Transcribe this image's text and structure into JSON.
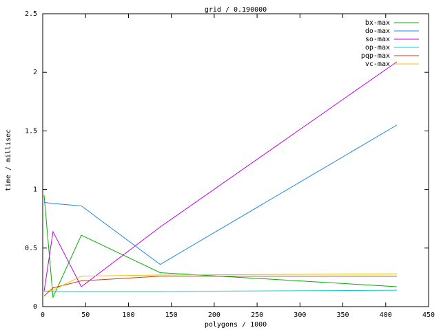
{
  "chart_data": {
    "type": "line",
    "title": "grid / 0.190000",
    "x_label": "polygons / 1000",
    "y_label": "time / millisec",
    "x": [
      1.6,
      12,
      45,
      137,
      413
    ],
    "series": [
      {
        "name": "bx-max",
        "color": "#00b000",
        "values": [
          0.95,
          0.08,
          0.61,
          0.29,
          0.17
        ]
      },
      {
        "name": "do-max",
        "color": "#1e88e5",
        "values": [
          0.89,
          0.88,
          0.86,
          0.36,
          1.55
        ]
      },
      {
        "name": "so-max",
        "color": "#c000e0",
        "values": [
          0.13,
          0.64,
          0.17,
          0.68,
          2.09
        ]
      },
      {
        "name": "op-max",
        "color": "#00d0d0",
        "values": [
          0.13,
          0.13,
          0.13,
          0.13,
          0.14
        ]
      },
      {
        "name": "pqp-max",
        "color": "#c04010",
        "values": [
          0.09,
          0.16,
          0.22,
          0.26,
          0.26
        ]
      },
      {
        "name": "vc-max",
        "color": "#f0c000",
        "values": [
          0.13,
          0.14,
          0.26,
          0.27,
          0.28
        ]
      }
    ],
    "xlim": [
      0,
      450
    ],
    "xticks": [
      0,
      50,
      100,
      150,
      200,
      250,
      300,
      350,
      400,
      450
    ],
    "ylim": [
      0,
      2.5
    ],
    "yticks": [
      0,
      0.5,
      1,
      1.5,
      2,
      2.5
    ],
    "grid": false,
    "legend": "top-right"
  }
}
